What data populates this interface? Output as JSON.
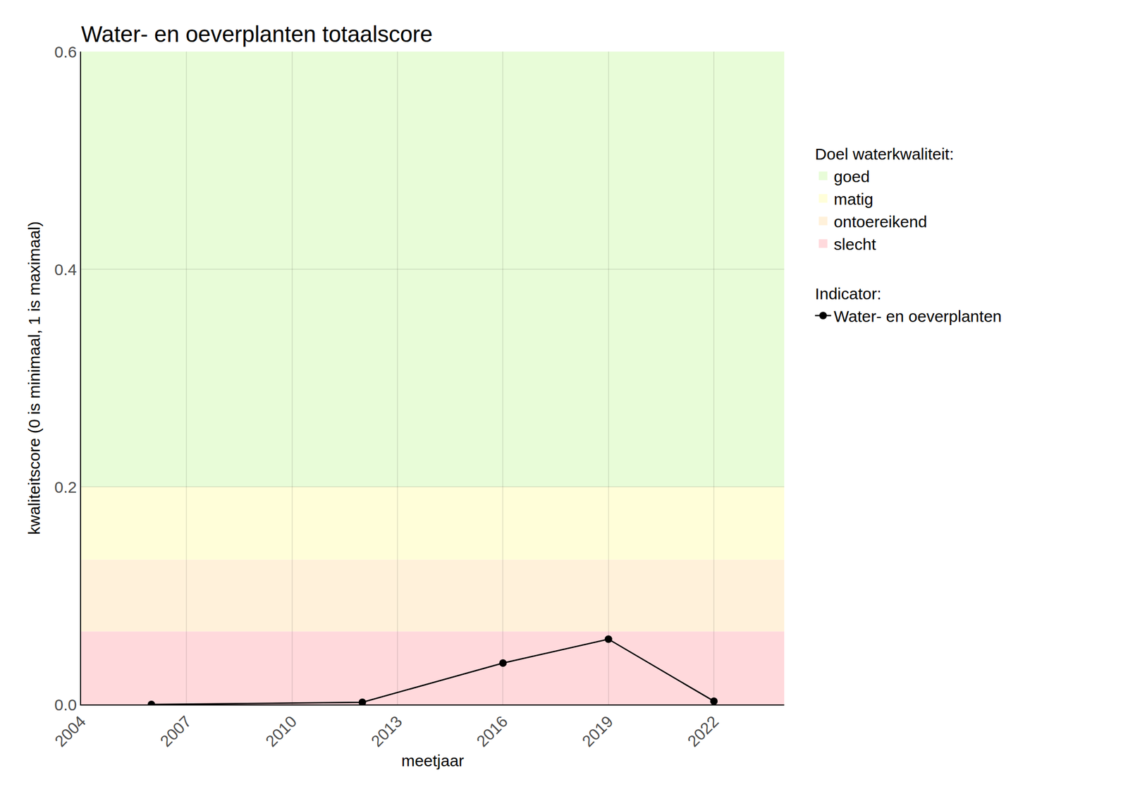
{
  "chart_data": {
    "type": "line",
    "title": "Water- en oeverplanten totaalscore",
    "x_label": "meetjaar",
    "y_label": "kwaliteitscore (0 is minimaal, 1 is maximaal)",
    "x": [
      2006,
      2012,
      2016,
      2019,
      2022
    ],
    "series": [
      {
        "name": "Water- en oeverplanten",
        "color": "#000000",
        "marker": "circle",
        "line_style": "solid",
        "values": [
          0.0,
          0.002,
          0.038,
          0.06,
          0.003
        ]
      }
    ],
    "legend_title": "Indicator:",
    "bands": {
      "title": "Doel waterkwaliteit:",
      "items": [
        {
          "name": "goed",
          "from": 0.2,
          "to": 0.6,
          "color": "#e8fcd8"
        },
        {
          "name": "matig",
          "from": 0.133,
          "to": 0.2,
          "color": "#fffed9"
        },
        {
          "name": "ontoereikend",
          "from": 0.067,
          "to": 0.133,
          "color": "#fff1da"
        },
        {
          "name": "slecht",
          "from": 0.0,
          "to": 0.067,
          "color": "#ffd9dc"
        }
      ]
    },
    "xlim": [
      2004,
      2024
    ],
    "xticks": [
      2004,
      2007,
      2010,
      2013,
      2016,
      2019,
      2022
    ],
    "ylim": [
      0,
      0.6
    ],
    "yticks": [
      {
        "value": 0,
        "label": "0.0"
      },
      0.2,
      0.4,
      0.6
    ],
    "grid": true,
    "legend": "right"
  }
}
